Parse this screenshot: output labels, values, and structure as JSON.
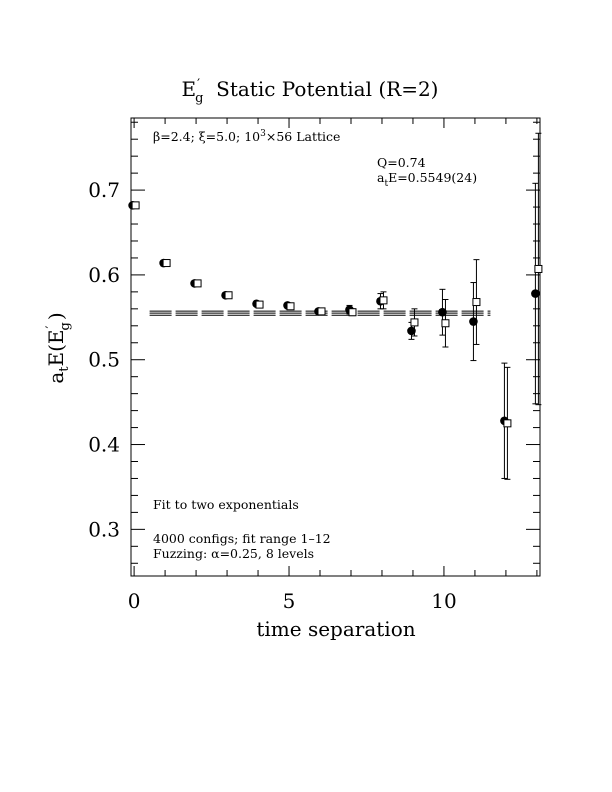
{
  "chart_data": {
    "type": "scatter",
    "title": {
      "main": "E",
      "main_sup": "′",
      "main_sub": "g",
      "rest": "  Static Potential (R=2)"
    },
    "xlabel": "time separation",
    "ylabel": {
      "prefix": "a",
      "prefix_sub": "t",
      "mid": "E(E",
      "mid_sup": "′",
      "mid_sub": "g",
      "suffix": ")"
    },
    "xlim": [
      -0.1,
      13.1
    ],
    "ylim": [
      0.245,
      0.785
    ],
    "x_ticks": [
      0,
      5,
      10
    ],
    "x_tick_labels": [
      "0",
      "5",
      "10"
    ],
    "y_ticks": [
      0.3,
      0.4,
      0.5,
      0.6,
      0.7
    ],
    "y_tick_labels": [
      "0.3",
      "0.4",
      "0.5",
      "0.6",
      "0.7"
    ],
    "grid": false,
    "annotations": {
      "lattice": {
        "beta": "β=2.4; ",
        "xi": "ξ=5.0; ",
        "lattice": "10",
        "lattice_sup": "3",
        "lattice_rest": "×56 Lattice"
      },
      "q": "Q=0.74",
      "energy": {
        "prefix": "a",
        "prefix_sub": "t",
        "rest": "E=0.5549(24)"
      },
      "fit_label": "Fit to two exponentials",
      "configs": "4000 configs; fit range 1–12",
      "fuzzing": "Fuzzing: α=0.25, 8 levels"
    },
    "fit": {
      "value": 0.5549,
      "error": 0.0024,
      "x_range": [
        0.5,
        11.5
      ]
    },
    "series": [
      {
        "marker": "filled-circle",
        "points": [
          {
            "x": 0,
            "y": 0.682,
            "err": 0.002
          },
          {
            "x": 1,
            "y": 0.614,
            "err": 0.003
          },
          {
            "x": 2,
            "y": 0.59,
            "err": 0.003
          },
          {
            "x": 3,
            "y": 0.576,
            "err": 0.003
          },
          {
            "x": 4,
            "y": 0.566,
            "err": 0.003
          },
          {
            "x": 5,
            "y": 0.564,
            "err": 0.003
          },
          {
            "x": 6,
            "y": 0.557,
            "err": 0.003
          },
          {
            "x": 7,
            "y": 0.559,
            "err": 0.005
          },
          {
            "x": 8,
            "y": 0.569,
            "err": 0.009
          },
          {
            "x": 9,
            "y": 0.534,
            "err": 0.01
          },
          {
            "x": 10,
            "y": 0.556,
            "err": 0.027
          },
          {
            "x": 11,
            "y": 0.545,
            "err": 0.046
          },
          {
            "x": 12,
            "y": 0.428,
            "err": 0.068
          },
          {
            "x": 13,
            "y": 0.578,
            "err": 0.13
          }
        ]
      },
      {
        "marker": "open-square",
        "points": [
          {
            "x": 0,
            "y": 0.682,
            "err": 0.002
          },
          {
            "x": 1,
            "y": 0.614,
            "err": 0.003
          },
          {
            "x": 2,
            "y": 0.59,
            "err": 0.003
          },
          {
            "x": 3,
            "y": 0.576,
            "err": 0.003
          },
          {
            "x": 4,
            "y": 0.565,
            "err": 0.003
          },
          {
            "x": 5,
            "y": 0.563,
            "err": 0.003
          },
          {
            "x": 6,
            "y": 0.557,
            "err": 0.003
          },
          {
            "x": 7,
            "y": 0.556,
            "err": 0.004
          },
          {
            "x": 8,
            "y": 0.57,
            "err": 0.01
          },
          {
            "x": 9,
            "y": 0.544,
            "err": 0.016
          },
          {
            "x": 10,
            "y": 0.543,
            "err": 0.028
          },
          {
            "x": 11,
            "y": 0.568,
            "err": 0.05
          },
          {
            "x": 12,
            "y": 0.425,
            "err": 0.066
          },
          {
            "x": 13,
            "y": 0.607,
            "err": 0.16
          }
        ]
      }
    ]
  }
}
